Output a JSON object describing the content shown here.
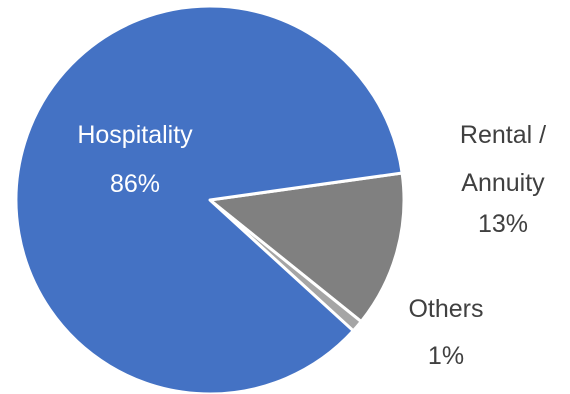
{
  "chart_data": {
    "type": "pie",
    "title": "",
    "slices": [
      {
        "name": "Hospitality",
        "value": 86,
        "label_line1": "Hospitality",
        "label_line2": "",
        "label_pct": "86%",
        "color": "#4472c4",
        "label_color": "#ffffff"
      },
      {
        "name": "Rental / Annuity",
        "value": 13,
        "label_line1": "Rental /",
        "label_line2": "Annuity",
        "label_pct": "13%",
        "color": "#808080",
        "label_color": "#404040"
      },
      {
        "name": "Others",
        "value": 1,
        "label_line1": "Others",
        "label_line2": "",
        "label_pct": "1%",
        "color": "#a5a5a5",
        "label_color": "#404040"
      }
    ],
    "start_angle_deg": 82,
    "legend": "none"
  }
}
